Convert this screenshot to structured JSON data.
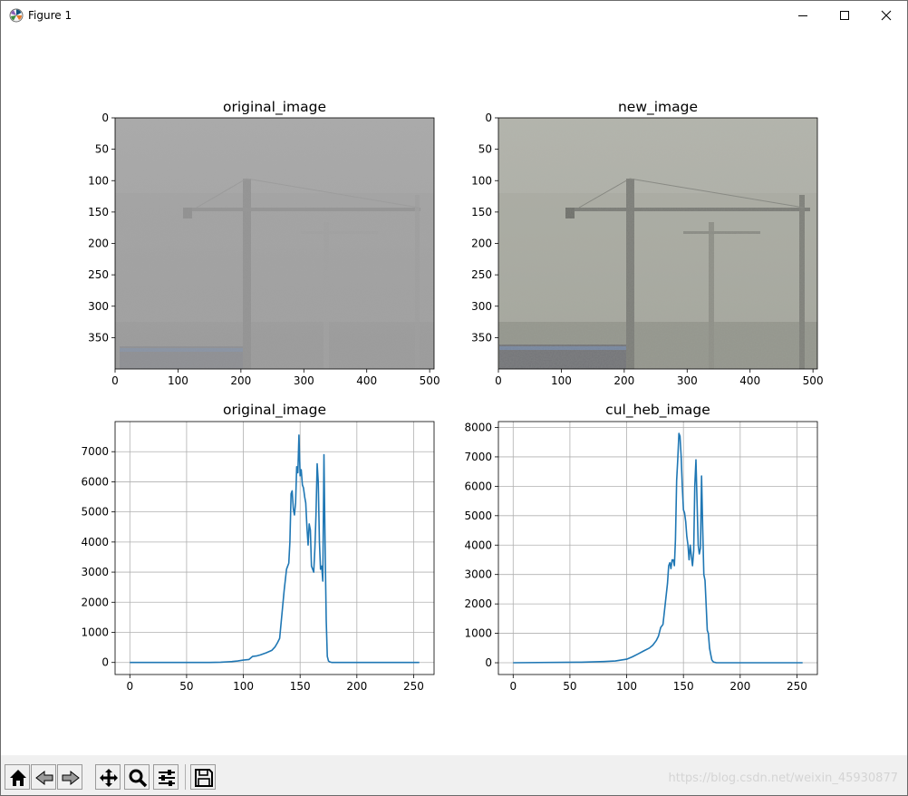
{
  "window": {
    "title": "Figure 1"
  },
  "toolbar": {
    "watermark": "https://blog.csdn.net/weixin_45930877"
  },
  "colors": {
    "line": "#1f77b4",
    "grid": "#b0b0b0"
  },
  "chart_data": [
    {
      "type": "image",
      "title": "original_image",
      "xticks": [
        0,
        100,
        200,
        300,
        400,
        500
      ],
      "yticks": [
        0,
        50,
        100,
        150,
        200,
        250,
        300,
        350
      ],
      "xlim": [
        0,
        507
      ],
      "ylim": [
        400,
        0
      ],
      "grid": false
    },
    {
      "type": "image",
      "title": "new_image",
      "xticks": [
        0,
        100,
        200,
        300,
        400,
        500
      ],
      "yticks": [
        0,
        50,
        100,
        150,
        200,
        250,
        300,
        350
      ],
      "xlim": [
        0,
        507
      ],
      "ylim": [
        400,
        0
      ],
      "grid": false
    },
    {
      "type": "line",
      "title": "original_image",
      "xticks": [
        0,
        50,
        100,
        150,
        200,
        250
      ],
      "yticks": [
        0,
        1000,
        2000,
        3000,
        4000,
        5000,
        6000,
        7000
      ],
      "xlim": [
        -13,
        268
      ],
      "ylim": [
        -400,
        8000
      ],
      "grid": true,
      "series": [
        {
          "x": [
            0,
            70,
            80,
            90,
            95,
            100,
            105,
            108,
            112,
            115,
            120,
            125,
            128,
            130,
            132,
            134,
            136,
            138,
            140,
            141,
            142,
            143,
            144,
            145,
            146,
            147,
            148,
            149,
            150,
            151,
            152,
            153,
            154,
            155,
            156,
            157,
            158,
            159,
            160,
            161,
            162,
            163,
            164,
            165,
            166,
            167,
            168,
            169,
            170,
            171,
            172,
            173,
            174,
            175,
            176,
            177,
            178,
            180,
            200,
            255
          ],
          "y": [
            0,
            0,
            10,
            30,
            50,
            80,
            100,
            200,
            220,
            250,
            320,
            400,
            520,
            650,
            800,
            1600,
            2400,
            3100,
            3300,
            4000,
            5600,
            5700,
            5100,
            4900,
            5300,
            6500,
            6300,
            7550,
            6200,
            6400,
            5900,
            5800,
            5500,
            5300,
            4500,
            3900,
            4600,
            4400,
            3200,
            3100,
            3000,
            3800,
            4900,
            6600,
            6000,
            4000,
            3100,
            3200,
            2700,
            6900,
            4000,
            1400,
            200,
            50,
            20,
            10,
            0,
            0,
            0,
            0
          ]
        }
      ]
    },
    {
      "type": "line",
      "title": "cul_heb_image",
      "xticks": [
        0,
        50,
        100,
        150,
        200,
        250
      ],
      "yticks": [
        0,
        1000,
        2000,
        3000,
        4000,
        5000,
        6000,
        7000,
        8000
      ],
      "xlim": [
        -13,
        268
      ],
      "ylim": [
        -400,
        8200
      ],
      "grid": true,
      "series": [
        {
          "x": [
            0,
            60,
            80,
            90,
            100,
            105,
            110,
            115,
            120,
            123,
            126,
            128,
            130,
            132,
            134,
            136,
            137,
            138,
            139,
            140,
            141,
            142,
            143,
            144,
            145,
            146,
            147,
            148,
            149,
            150,
            151,
            152,
            153,
            154,
            155,
            156,
            157,
            158,
            159,
            160,
            161,
            162,
            163,
            164,
            165,
            166,
            167,
            168,
            169,
            170,
            171,
            172,
            173,
            174,
            175,
            176,
            177,
            178,
            179,
            180,
            181,
            182,
            184,
            186,
            200,
            255
          ],
          "y": [
            0,
            20,
            40,
            60,
            120,
            200,
            300,
            400,
            500,
            600,
            750,
            900,
            1200,
            1300,
            2000,
            2700,
            3300,
            3400,
            3200,
            3500,
            3500,
            3300,
            4200,
            6200,
            6900,
            7800,
            7700,
            7000,
            6000,
            5200,
            5100,
            4800,
            4300,
            4000,
            3500,
            4000,
            3600,
            3300,
            3800,
            6000,
            6900,
            5500,
            4000,
            3700,
            3900,
            6350,
            4500,
            3000,
            2800,
            2000,
            1100,
            1000,
            500,
            300,
            100,
            40,
            20,
            10,
            0,
            0,
            0,
            0,
            0,
            0,
            0,
            0
          ]
        }
      ]
    }
  ]
}
